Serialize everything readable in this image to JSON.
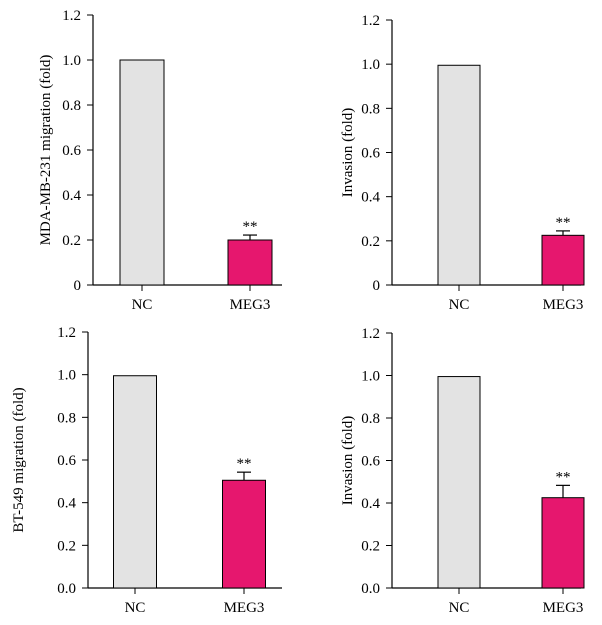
{
  "figure": {
    "bar_colors": {
      "NC": "#e3e3e3",
      "MEG3": "#e6176e"
    },
    "outline_color": "#000000"
  },
  "chart_data": [
    {
      "type": "bar",
      "categories": [
        "NC",
        "MEG3"
      ],
      "values": [
        1.0,
        0.2
      ],
      "errors": [
        0,
        0.022
      ],
      "significance": [
        "",
        "**"
      ],
      "ylabel": "MDA-MB-231 migration (fold)",
      "ylim": [
        0,
        1.2
      ],
      "yticks": [
        "0",
        "0.2",
        "0.4",
        "0.6",
        "0.8",
        "1.0",
        "1.2"
      ],
      "grid": false
    },
    {
      "type": "bar",
      "categories": [
        "NC",
        "MEG3"
      ],
      "values": [
        0.995,
        0.225
      ],
      "errors": [
        0,
        0.02
      ],
      "significance": [
        "",
        "**"
      ],
      "ylabel": "Invasion (fold)",
      "ylim": [
        0,
        1.2
      ],
      "yticks": [
        "0",
        "0.2",
        "0.4",
        "0.6",
        "0.8",
        "1.0",
        "1.2"
      ],
      "grid": false
    },
    {
      "type": "bar",
      "categories": [
        "NC",
        "MEG3"
      ],
      "values": [
        0.995,
        0.505
      ],
      "errors": [
        0,
        0.038
      ],
      "significance": [
        "",
        "**"
      ],
      "ylabel": "BT-549 migration (fold)",
      "ylim": [
        0,
        1.2
      ],
      "yticks": [
        "0.0",
        "0.2",
        "0.4",
        "0.6",
        "0.8",
        "1.0",
        "1.2"
      ],
      "grid": false
    },
    {
      "type": "bar",
      "categories": [
        "NC",
        "MEG3"
      ],
      "values": [
        0.995,
        0.425
      ],
      "errors": [
        0,
        0.058
      ],
      "significance": [
        "",
        "**"
      ],
      "ylabel": "Invasion (fold)",
      "ylim": [
        0,
        1.2
      ],
      "yticks": [
        "0.0",
        "0.2",
        "0.4",
        "0.6",
        "0.8",
        "1.0",
        "1.2"
      ],
      "grid": false
    }
  ]
}
